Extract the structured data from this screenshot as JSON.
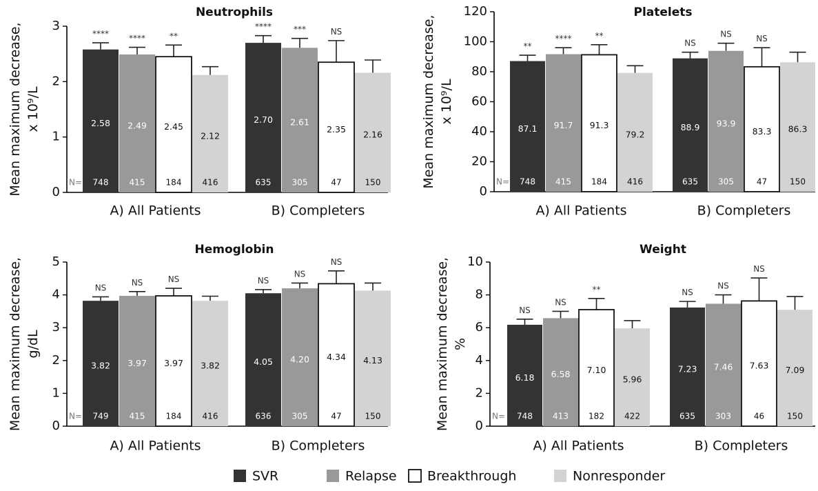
{
  "legend": [
    {
      "name": "SVR",
      "color": "#333333"
    },
    {
      "name": "Relapse",
      "color": "#999999"
    },
    {
      "name": "Breakthrough",
      "color": "#ffffff"
    },
    {
      "name": "Nonresponder",
      "color": "#d3d3d3"
    }
  ],
  "chart_data": [
    {
      "type": "bar",
      "title": "Neutrophils",
      "ylabel": "Mean maximum decrease, x 10⁹/L",
      "ylim": [
        0,
        3
      ],
      "yticks": [
        0,
        1,
        2,
        3
      ],
      "n_label": "N=",
      "groups": [
        {
          "label": "A) All Patients",
          "values": [
            2.58,
            2.49,
            2.45,
            2.12
          ],
          "errors": [
            2.7,
            2.62,
            2.66,
            2.27
          ],
          "value_labels": [
            "2.58",
            "2.49",
            "2.45",
            "2.12"
          ],
          "n": [
            "748",
            "415",
            "184",
            "416"
          ],
          "significance": [
            "****",
            "****",
            "**",
            ""
          ]
        },
        {
          "label": "B) Completers",
          "values": [
            2.7,
            2.61,
            2.35,
            2.16
          ],
          "errors": [
            2.83,
            2.78,
            2.74,
            2.39
          ],
          "value_labels": [
            "2.70",
            "2.61",
            "2.35",
            "2.16"
          ],
          "n": [
            "635",
            "305",
            "47",
            "150"
          ],
          "significance": [
            "****",
            "***",
            "NS",
            ""
          ]
        }
      ]
    },
    {
      "type": "bar",
      "title": "Platelets",
      "ylabel": "Mean maximum decrease, x 10⁹/L",
      "ylim": [
        0,
        120
      ],
      "yticks": [
        0,
        20,
        40,
        60,
        80,
        100,
        120
      ],
      "n_label": "N=",
      "groups": [
        {
          "label": "A) All Patients",
          "values": [
            87.1,
            91.7,
            91.3,
            79.2
          ],
          "errors": [
            91.0,
            96.0,
            98.0,
            84.0
          ],
          "value_labels": [
            "87.1",
            "91.7",
            "91.3",
            "79.2"
          ],
          "n": [
            "748",
            "415",
            "184",
            "416"
          ],
          "significance": [
            "**",
            "****",
            "**",
            ""
          ]
        },
        {
          "label": "B) Completers",
          "values": [
            88.9,
            93.9,
            83.3,
            86.3
          ],
          "errors": [
            93.0,
            99.0,
            96.0,
            93.0
          ],
          "value_labels": [
            "88.9",
            "93.9",
            "83.3",
            "86.3"
          ],
          "n": [
            "635",
            "305",
            "47",
            "150"
          ],
          "significance": [
            "NS",
            "NS",
            "NS",
            ""
          ]
        }
      ]
    },
    {
      "type": "bar",
      "title": "Hemoglobin",
      "ylabel": "Mean maximum decrease, g/dL",
      "ylim": [
        0,
        5
      ],
      "yticks": [
        0,
        1,
        2,
        3,
        4,
        5
      ],
      "n_label": "N=",
      "groups": [
        {
          "label": "A) All Patients",
          "values": [
            3.82,
            3.97,
            3.97,
            3.82
          ],
          "errors": [
            3.94,
            4.1,
            4.2,
            3.96
          ],
          "value_labels": [
            "3.82",
            "3.97",
            "3.97",
            "3.82"
          ],
          "n": [
            "749",
            "415",
            "184",
            "416"
          ],
          "significance": [
            "NS",
            "NS",
            "NS",
            ""
          ]
        },
        {
          "label": "B) Completers",
          "values": [
            4.05,
            4.2,
            4.34,
            4.13
          ],
          "errors": [
            4.16,
            4.36,
            4.73,
            4.36
          ],
          "value_labels": [
            "4.05",
            "4.20",
            "4.34",
            "4.13"
          ],
          "n": [
            "636",
            "305",
            "47",
            "150"
          ],
          "significance": [
            "NS",
            "NS",
            "NS",
            ""
          ]
        }
      ]
    },
    {
      "type": "bar",
      "title": "Weight",
      "ylabel": "Mean maximum decrease, %",
      "ylim": [
        0,
        10
      ],
      "yticks": [
        0,
        2,
        4,
        6,
        8,
        10
      ],
      "n_label": "N=",
      "groups": [
        {
          "label": "A) All Patients",
          "values": [
            6.18,
            6.58,
            7.1,
            5.96
          ],
          "errors": [
            6.52,
            7.0,
            7.78,
            6.43
          ],
          "value_labels": [
            "6.18",
            "6.58",
            "7.10",
            "5.96"
          ],
          "n": [
            "748",
            "413",
            "182",
            "422"
          ],
          "significance": [
            "NS",
            "NS",
            "**",
            ""
          ]
        },
        {
          "label": "B) Completers",
          "values": [
            7.23,
            7.46,
            7.63,
            7.09
          ],
          "errors": [
            7.6,
            8.0,
            9.03,
            7.9
          ],
          "value_labels": [
            "7.23",
            "7.46",
            "7.63",
            "7.09"
          ],
          "n": [
            "635",
            "303",
            "46",
            "150"
          ],
          "significance": [
            "NS",
            "NS",
            "NS",
            ""
          ]
        }
      ]
    }
  ]
}
